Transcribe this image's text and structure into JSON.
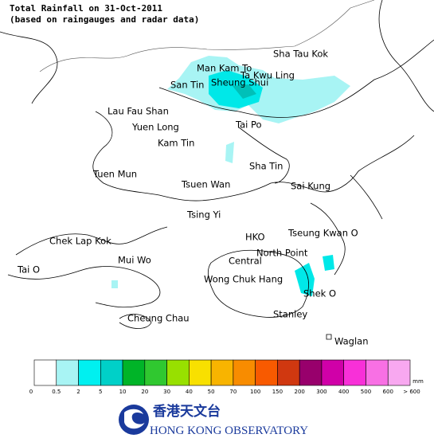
{
  "header": {
    "title": "Total Rainfall on 31-Oct-2011",
    "subtitle": "(based on raingauges and radar data)"
  },
  "places": [
    "Sha Tau Kok",
    "Man Kam To",
    "Ta Kwu Ling",
    "San Tin",
    "Sheung Shui",
    "Lau Fau Shan",
    "Yuen Long",
    "Tai Po",
    "Kam Tin",
    "Sha Tin",
    "Tuen Mun",
    "Tsuen Wan",
    "Sai Kung",
    "Tsing Yi",
    "Chek Lap Kok",
    "HKO",
    "Tseung Kwan O",
    "Mui Wo",
    "North Point",
    "Central",
    "Tai O",
    "Wong Chuk Hang",
    "Shek O",
    "Cheung Chau",
    "Stanley",
    "Waglan"
  ],
  "legend": {
    "unit": "mm",
    "colors": [
      "#ffffff",
      "#a8f4f4",
      "#00f0f0",
      "#00d0c8",
      "#00b428",
      "#30c830",
      "#98e000",
      "#f8e000",
      "#f8b400",
      "#f88c00",
      "#f85a00",
      "#d03810",
      "#98006c",
      "#d000a8",
      "#f830d8",
      "#f870e4",
      "#f8a8f0",
      "#fde0fb"
    ],
    "ticks": [
      0,
      0.5,
      2,
      5,
      10,
      20,
      30,
      40,
      50,
      70,
      100,
      150,
      200,
      300,
      400,
      500,
      600,
      "> 600"
    ]
  },
  "logo": {
    "chinese": "香港天文台",
    "english": "HONG KONG OBSERVATORY"
  }
}
